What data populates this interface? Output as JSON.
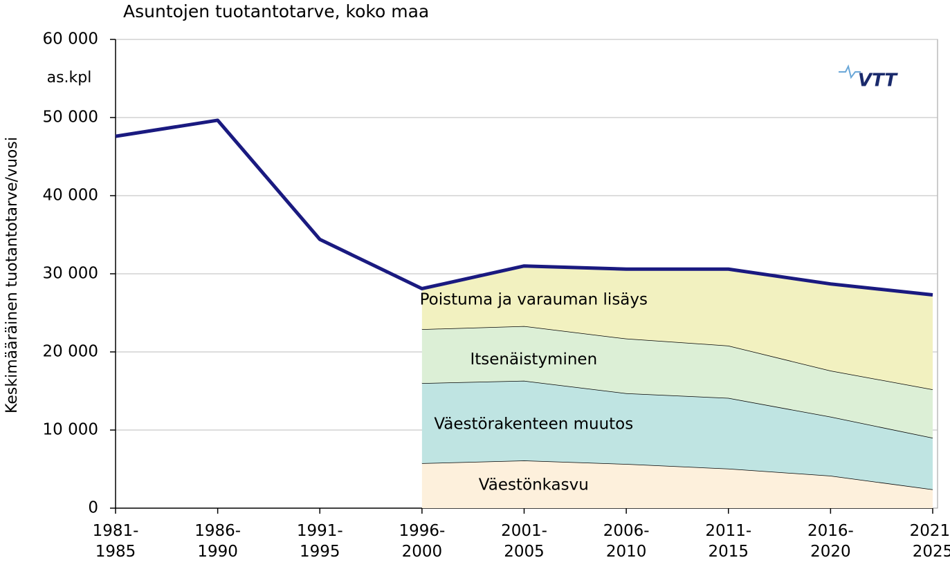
{
  "chart_data": {
    "type": "stacked-area",
    "title": "Asuntojen tuotantotarve, koko maa",
    "y_label": "Keskimääräinen tuotantotarve/vuosi",
    "unit_label": "as.kpl",
    "logo": "VTT",
    "categories": [
      "1981-\n1985",
      "1986-\n1990",
      "1991-\n1995",
      "1996-\n2000",
      "2001-\n2005",
      "2006-\n2010",
      "2011-\n2015",
      "2016-\n2020",
      "2021-\n2025"
    ],
    "ylim": [
      0,
      60000
    ],
    "yticks": [
      {
        "value": 0,
        "label": "0"
      },
      {
        "value": 10000,
        "label": "10 000"
      },
      {
        "value": 20000,
        "label": "20 000"
      },
      {
        "value": 30000,
        "label": "30 000"
      },
      {
        "value": 40000,
        "label": "40 000"
      },
      {
        "value": 50000,
        "label": "50 000"
      },
      {
        "value": 60000,
        "label": "60 000"
      }
    ],
    "grid": true,
    "series": [
      {
        "name": "Väestönkasvu",
        "color": "#fdf0dc",
        "values": [
          null,
          null,
          null,
          5750,
          6100,
          5650,
          5050,
          4150,
          2400
        ]
      },
      {
        "name": "Väestörakenteen muutos",
        "color": "#bfe4e2",
        "values": [
          null,
          null,
          null,
          10250,
          10200,
          9050,
          9050,
          7550,
          6600
        ]
      },
      {
        "name": "Itsenäistyminen",
        "color": "#dcefd6",
        "values": [
          null,
          null,
          null,
          6900,
          7000,
          7000,
          6700,
          5900,
          6200
        ]
      },
      {
        "name": "Poistuma ja varauman lisäys",
        "color": "#f2f1c0",
        "values": [
          null,
          null,
          null,
          5200,
          7700,
          8900,
          9800,
          11100,
          12100
        ]
      }
    ],
    "total": {
      "color": "#1a1a80",
      "values": [
        47600,
        49650,
        34400,
        28100,
        31000,
        30600,
        30600,
        28700,
        27300
      ]
    }
  }
}
